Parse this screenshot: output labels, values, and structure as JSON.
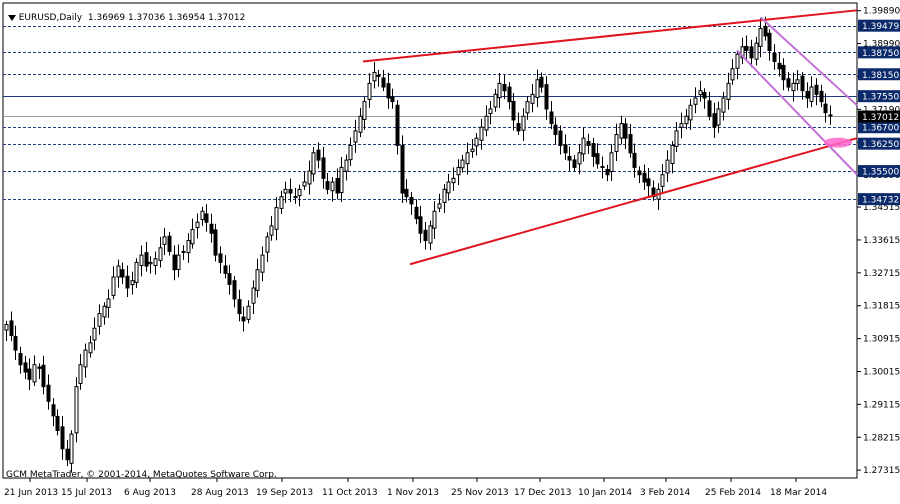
{
  "header": {
    "symbol": "EURUSD,Daily",
    "ohlc": "1.36969 1.37036 1.36954 1.37012"
  },
  "credit": "GCM MetaTrader, © 2001-2014, MetaQuotes Software Corp.",
  "colors": {
    "background": "#ffffff",
    "candle": "#000000",
    "grid_dash": "#1f3a7a",
    "trendline": "#e0141e",
    "channel": "#c271d6",
    "marker": "#ff66cc",
    "label_bg": "#0a2a6b",
    "price_label_bg": "#000000"
  },
  "chart_data": {
    "type": "candlestick",
    "title": "",
    "y_range": [
      1.271,
      1.401
    ],
    "y_ticks": [
      "1.39890",
      "1.38990",
      "1.38090",
      "1.37190",
      "1.36290",
      "1.35390",
      "1.34515",
      "1.33615",
      "1.32715",
      "1.31815",
      "1.30915",
      "1.30015",
      "1.29115",
      "1.28215",
      "1.27315"
    ],
    "x_ticks": [
      "21 Jun 2013",
      "15 Jul 2013",
      "6 Aug 2013",
      "28 Aug 2013",
      "19 Sep 2013",
      "11 Oct 2013",
      "1 Nov 2013",
      "25 Nov 2013",
      "17 Dec 2013",
      "10 Jan 2014",
      "3 Feb 2014",
      "25 Feb 2014",
      "18 Mar 2014"
    ],
    "levels": [
      {
        "label": "1.39479",
        "value": 1.39479,
        "style": "dashed"
      },
      {
        "label": "1.38750",
        "value": 1.3875,
        "style": "dashed"
      },
      {
        "label": "1.38150",
        "value": 1.3815,
        "style": "dashed"
      },
      {
        "label": "1.37550",
        "value": 1.3755,
        "style": "solid"
      },
      {
        "label": "1.36700",
        "value": 1.367,
        "style": "dashed"
      },
      {
        "label": "1.36250",
        "value": 1.3625,
        "style": "dashed"
      },
      {
        "label": "1.35500",
        "value": 1.355,
        "style": "dashed"
      },
      {
        "label": "1.34732",
        "value": 1.34732,
        "style": "dashed"
      }
    ],
    "current_price": {
      "label": "1.37012",
      "value": 1.37012
    },
    "closes": [
      1.313,
      1.31,
      1.306,
      1.302,
      1.3,
      1.298,
      1.302,
      1.301,
      1.296,
      1.292,
      1.288,
      1.284,
      1.279,
      1.276,
      1.283,
      1.296,
      1.302,
      1.306,
      1.308,
      1.312,
      1.316,
      1.318,
      1.32,
      1.326,
      1.329,
      1.326,
      1.323,
      1.325,
      1.33,
      1.332,
      1.329,
      1.33,
      1.331,
      1.334,
      1.337,
      1.333,
      1.328,
      1.332,
      1.333,
      1.336,
      1.339,
      1.341,
      1.344,
      1.341,
      1.338,
      1.332,
      1.33,
      1.327,
      1.324,
      1.32,
      1.316,
      1.314,
      1.318,
      1.323,
      1.328,
      1.332,
      1.337,
      1.34,
      1.345,
      1.348,
      1.35,
      1.349,
      1.348,
      1.35,
      1.352,
      1.355,
      1.36,
      1.358,
      1.353,
      1.35,
      1.352,
      1.349,
      1.356,
      1.358,
      1.362,
      1.366,
      1.37,
      1.374,
      1.379,
      1.382,
      1.381,
      1.378,
      1.375,
      1.374,
      1.362,
      1.349,
      1.348,
      1.346,
      1.342,
      1.338,
      1.336,
      1.34,
      1.344,
      1.346,
      1.35,
      1.352,
      1.353,
      1.356,
      1.358,
      1.36,
      1.361,
      1.364,
      1.367,
      1.37,
      1.372,
      1.376,
      1.379,
      1.377,
      1.374,
      1.369,
      1.366,
      1.37,
      1.374,
      1.376,
      1.38,
      1.378,
      1.372,
      1.368,
      1.365,
      1.362,
      1.36,
      1.358,
      1.356,
      1.36,
      1.364,
      1.362,
      1.359,
      1.357,
      1.356,
      1.354,
      1.36,
      1.365,
      1.368,
      1.364,
      1.36,
      1.356,
      1.354,
      1.352,
      1.351,
      1.348,
      1.35,
      1.354,
      1.358,
      1.362,
      1.366,
      1.368,
      1.37,
      1.373,
      1.375,
      1.377,
      1.375,
      1.37,
      1.367,
      1.372,
      1.375,
      1.379,
      1.383,
      1.387,
      1.389,
      1.388,
      1.386,
      1.39,
      1.394,
      1.392,
      1.388,
      1.385,
      1.383,
      1.38,
      1.378,
      1.379,
      1.38,
      1.377,
      1.375,
      1.378,
      1.376,
      1.374,
      1.371,
      1.3701
    ],
    "trendlines": [
      {
        "name": "upper-resistance",
        "from": [
          "11 Oct 2013",
          1.385
        ],
        "to": [
          "right-edge",
          1.399
        ]
      },
      {
        "name": "lower-support",
        "from": [
          "1 Nov 2013",
          1.3295
        ],
        "to": [
          "right-edge",
          1.364
        ]
      },
      {
        "name": "channel-top",
        "from": [
          "25 Feb 2014",
          1.397
        ],
        "to": [
          "right-edge",
          1.373
        ]
      },
      {
        "name": "channel-bottom",
        "from": [
          "25 Feb 2014",
          1.388
        ],
        "to": [
          "right-edge",
          1.354
        ]
      }
    ]
  }
}
